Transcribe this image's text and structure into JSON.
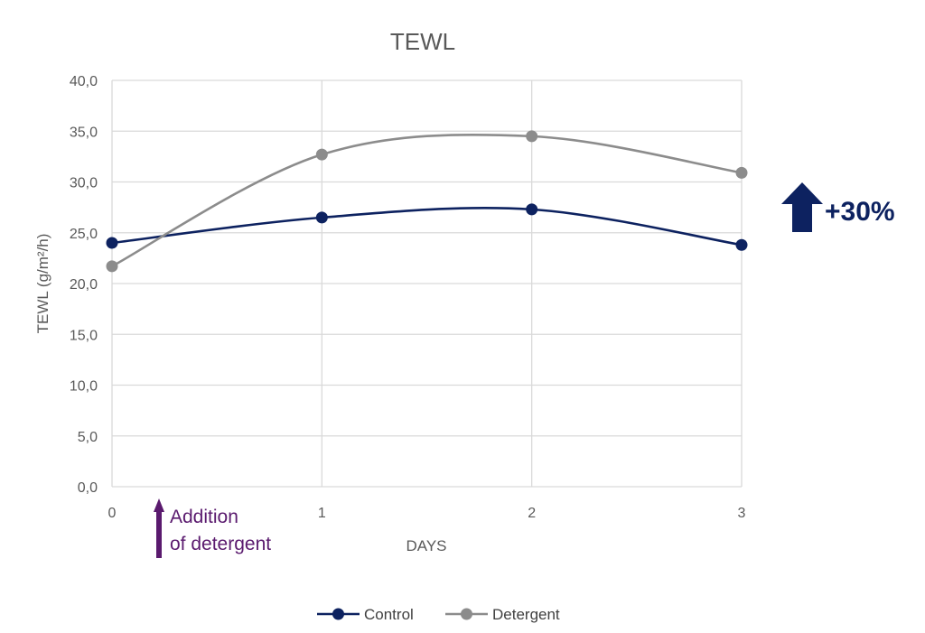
{
  "chart_data": {
    "type": "line",
    "title": "TEWL",
    "xlabel": "DAYS",
    "ylabel": "TEWL (g/m²/h)",
    "x": [
      0,
      1,
      2,
      3
    ],
    "x_tick_labels": [
      "0",
      "1",
      "2",
      "3"
    ],
    "ylim": [
      0,
      40
    ],
    "y_tick_labels": [
      "0,0",
      "5,0",
      "10,0",
      "15,0",
      "20,0",
      "25,0",
      "30,0",
      "35,0",
      "40,0"
    ],
    "grid": true,
    "smooth": true,
    "series": [
      {
        "name": "Control",
        "values": [
          24.0,
          26.5,
          27.3,
          23.8
        ],
        "color": "#0d2260"
      },
      {
        "name": "Detergent",
        "values": [
          21.7,
          32.7,
          34.5,
          30.9
        ],
        "color": "#8c8c8c"
      }
    ],
    "legend_position": "bottom-center",
    "annotations": {
      "addition_line1": "Addition",
      "addition_line2": "of detergent",
      "addition_color": "#5a1a6e",
      "increase_label": "+30%",
      "increase_color": "#0d2260"
    }
  }
}
